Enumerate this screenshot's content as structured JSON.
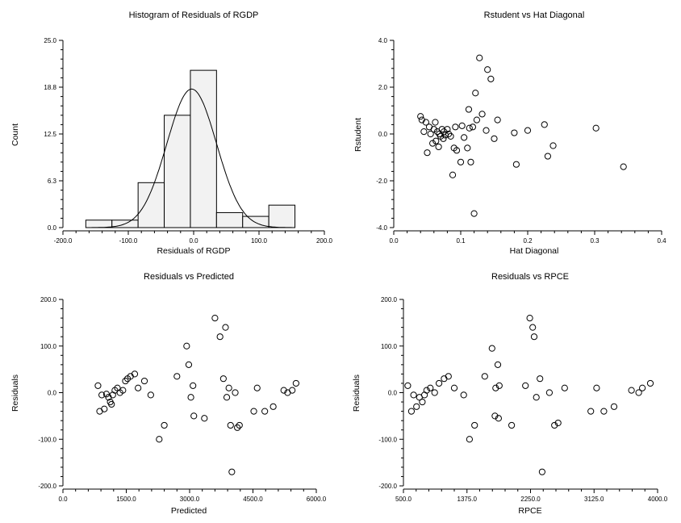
{
  "chart_data": [
    {
      "type": "bar",
      "subtype": "histogram_with_normal_curve",
      "title": "Histogram of Residuals of RGDP",
      "xlabel": "Residuals of RGDP",
      "ylabel": "Count",
      "xlim": [
        -200,
        200
      ],
      "ylim": [
        0,
        25
      ],
      "xticks": [
        "-200.0",
        "-100.0",
        "0.0",
        "100.0",
        "200.0"
      ],
      "yticks": [
        "0.0",
        "6.3",
        "12.5",
        "18.8",
        "25.0"
      ],
      "bins": [
        {
          "from": -165,
          "to": -125,
          "count": 1
        },
        {
          "from": -125,
          "to": -85,
          "count": 1
        },
        {
          "from": -85,
          "to": -45,
          "count": 6
        },
        {
          "from": -45,
          "to": -5,
          "count": 15
        },
        {
          "from": -5,
          "to": 35,
          "count": 21
        },
        {
          "from": 35,
          "to": 75,
          "count": 2
        },
        {
          "from": 75,
          "to": 115,
          "count": 1.5
        },
        {
          "from": 115,
          "to": 155,
          "count": 3
        }
      ],
      "normal_curve": {
        "mean": -3,
        "sd": 38,
        "peak": 18.5
      },
      "bar_fill": "#f2f2f2",
      "grid": false
    },
    {
      "type": "scatter",
      "title": "Rstudent vs Hat Diagonal",
      "xlabel": "Hat Diagonal",
      "ylabel": "Rstudent",
      "xlim": [
        0,
        0.4
      ],
      "ylim": [
        -4,
        4
      ],
      "xticks": [
        "0.0",
        "0.1",
        "0.2",
        "0.3",
        "0.4"
      ],
      "yticks": [
        "-4.0",
        "-2.0",
        "0.0",
        "2.0",
        "4.0"
      ],
      "marker": "open-circle",
      "points": [
        [
          0.04,
          0.75
        ],
        [
          0.042,
          0.6
        ],
        [
          0.045,
          0.1
        ],
        [
          0.048,
          0.5
        ],
        [
          0.05,
          -0.8
        ],
        [
          0.053,
          0.3
        ],
        [
          0.055,
          0.0
        ],
        [
          0.058,
          -0.4
        ],
        [
          0.06,
          0.2
        ],
        [
          0.062,
          0.5
        ],
        [
          0.063,
          -0.3
        ],
        [
          0.065,
          0.1
        ],
        [
          0.067,
          -0.55
        ],
        [
          0.068,
          0.0
        ],
        [
          0.07,
          -0.1
        ],
        [
          0.072,
          0.2
        ],
        [
          0.074,
          -0.2
        ],
        [
          0.075,
          0.1
        ],
        [
          0.077,
          -0.05
        ],
        [
          0.08,
          0.2
        ],
        [
          0.082,
          0.0
        ],
        [
          0.085,
          -0.1
        ],
        [
          0.088,
          -1.75
        ],
        [
          0.09,
          -0.6
        ],
        [
          0.092,
          0.3
        ],
        [
          0.094,
          -0.7
        ],
        [
          0.1,
          -1.2
        ],
        [
          0.102,
          0.35
        ],
        [
          0.105,
          -0.15
        ],
        [
          0.11,
          -0.6
        ],
        [
          0.112,
          1.05
        ],
        [
          0.113,
          0.25
        ],
        [
          0.115,
          -1.2
        ],
        [
          0.118,
          0.3
        ],
        [
          0.12,
          -3.4
        ],
        [
          0.122,
          1.75
        ],
        [
          0.124,
          0.6
        ],
        [
          0.128,
          3.25
        ],
        [
          0.132,
          0.85
        ],
        [
          0.138,
          0.15
        ],
        [
          0.14,
          2.75
        ],
        [
          0.145,
          2.35
        ],
        [
          0.15,
          -0.2
        ],
        [
          0.155,
          0.6
        ],
        [
          0.18,
          0.05
        ],
        [
          0.183,
          -1.3
        ],
        [
          0.2,
          0.15
        ],
        [
          0.225,
          0.4
        ],
        [
          0.23,
          -0.95
        ],
        [
          0.238,
          -0.5
        ],
        [
          0.302,
          0.25
        ],
        [
          0.343,
          -1.4
        ]
      ]
    },
    {
      "type": "scatter",
      "title": "Residuals vs Predicted",
      "xlabel": "Predicted",
      "ylabel": "Residuals",
      "xlim": [
        0,
        6000
      ],
      "ylim": [
        -200,
        200
      ],
      "xticks": [
        "0.0",
        "1500.0",
        "3000.0",
        "4500.0",
        "6000.0"
      ],
      "yticks": [
        "-200.0",
        "-100.0",
        "0.0",
        "100.0",
        "200.0"
      ],
      "marker": "open-circle",
      "points": [
        [
          830,
          15
        ],
        [
          870,
          -40
        ],
        [
          920,
          -5
        ],
        [
          980,
          -35
        ],
        [
          1030,
          -3
        ],
        [
          1080,
          -10
        ],
        [
          1120,
          -20
        ],
        [
          1150,
          -25
        ],
        [
          1180,
          -5
        ],
        [
          1230,
          5
        ],
        [
          1290,
          10
        ],
        [
          1350,
          0
        ],
        [
          1420,
          5
        ],
        [
          1480,
          25
        ],
        [
          1530,
          30
        ],
        [
          1600,
          35
        ],
        [
          1700,
          40
        ],
        [
          1780,
          10
        ],
        [
          1930,
          25
        ],
        [
          2080,
          -5
        ],
        [
          2280,
          -100
        ],
        [
          2400,
          -70
        ],
        [
          2700,
          35
        ],
        [
          2930,
          100
        ],
        [
          2980,
          60
        ],
        [
          3030,
          -10
        ],
        [
          3080,
          15
        ],
        [
          3100,
          -50
        ],
        [
          3350,
          -55
        ],
        [
          3600,
          160
        ],
        [
          3720,
          120
        ],
        [
          3800,
          30
        ],
        [
          3850,
          140
        ],
        [
          3880,
          -10
        ],
        [
          3930,
          10
        ],
        [
          3970,
          -70
        ],
        [
          4000,
          -170
        ],
        [
          4080,
          0
        ],
        [
          4130,
          -75
        ],
        [
          4180,
          -70
        ],
        [
          4520,
          -40
        ],
        [
          4600,
          10
        ],
        [
          4780,
          -40
        ],
        [
          4980,
          -30
        ],
        [
          5230,
          5
        ],
        [
          5320,
          0
        ],
        [
          5430,
          5
        ],
        [
          5520,
          20
        ]
      ]
    },
    {
      "type": "scatter",
      "title": "Residuals vs RPCE",
      "xlabel": "RPCE",
      "ylabel": "Residuals",
      "xlim": [
        500,
        4000
      ],
      "ylim": [
        -200,
        200
      ],
      "xticks": [
        "500.0",
        "1375.0",
        "2250.0",
        "3125.0",
        "4000.0"
      ],
      "yticks": [
        "-200.0",
        "-100.0",
        "0.0",
        "100.0",
        "200.0"
      ],
      "marker": "open-circle",
      "points": [
        [
          560,
          15
        ],
        [
          610,
          -40
        ],
        [
          640,
          -5
        ],
        [
          680,
          -30
        ],
        [
          720,
          -10
        ],
        [
          760,
          -20
        ],
        [
          790,
          -5
        ],
        [
          820,
          5
        ],
        [
          870,
          10
        ],
        [
          930,
          0
        ],
        [
          990,
          20
        ],
        [
          1060,
          30
        ],
        [
          1120,
          35
        ],
        [
          1200,
          10
        ],
        [
          1330,
          -5
        ],
        [
          1410,
          -100
        ],
        [
          1480,
          -70
        ],
        [
          1620,
          35
        ],
        [
          1720,
          95
        ],
        [
          1760,
          -50
        ],
        [
          1770,
          10
        ],
        [
          1810,
          -55
        ],
        [
          1800,
          60
        ],
        [
          1820,
          15
        ],
        [
          1990,
          -70
        ],
        [
          2180,
          15
        ],
        [
          2240,
          160
        ],
        [
          2280,
          140
        ],
        [
          2300,
          120
        ],
        [
          2330,
          -10
        ],
        [
          2380,
          30
        ],
        [
          2410,
          -170
        ],
        [
          2510,
          0
        ],
        [
          2580,
          -70
        ],
        [
          2630,
          -65
        ],
        [
          2720,
          10
        ],
        [
          3080,
          -40
        ],
        [
          3160,
          10
        ],
        [
          3260,
          -40
        ],
        [
          3400,
          -30
        ],
        [
          3640,
          5
        ],
        [
          3740,
          0
        ],
        [
          3790,
          10
        ],
        [
          3900,
          20
        ]
      ]
    }
  ]
}
